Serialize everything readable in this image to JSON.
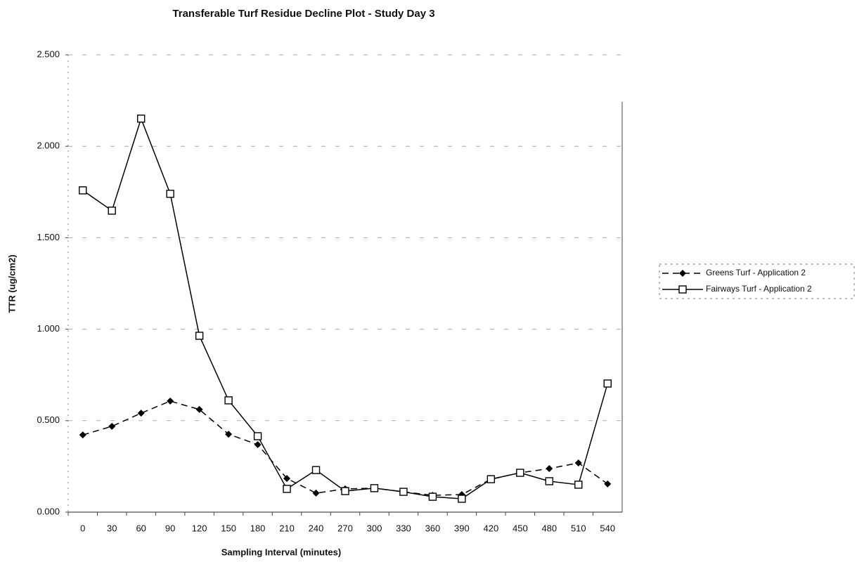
{
  "chart_data": {
    "type": "line",
    "title": "Transferable Turf Residue Decline Plot - Study Day 3",
    "x_label": "Sampling Interval (minutes)",
    "y_label": "TTR (ug/cm2)",
    "categories": [
      "0",
      "30",
      "60",
      "90",
      "120",
      "150",
      "180",
      "210",
      "240",
      "270",
      "300",
      "330",
      "360",
      "390",
      "420",
      "450",
      "480",
      "510",
      "540"
    ],
    "series": [
      {
        "name": "Greens Turf - Application 2",
        "color": "#000000",
        "line_style": "dashed",
        "marker": "diamond",
        "values": [
          0.422,
          0.469,
          0.541,
          0.607,
          0.561,
          0.426,
          0.369,
          0.184,
          0.104,
          0.127,
          0.131,
          0.111,
          0.092,
          0.096,
          0.18,
          0.215,
          0.238,
          0.269,
          0.154
        ]
      },
      {
        "name": "Fairways Turf - Application 2",
        "color": "#000000",
        "line_style": "solid",
        "marker": "square",
        "values": [
          1.759,
          1.648,
          2.151,
          1.74,
          0.964,
          0.611,
          0.415,
          0.127,
          0.23,
          0.115,
          0.131,
          0.111,
          0.084,
          0.073,
          0.18,
          0.215,
          0.169,
          0.15,
          0.703
        ]
      }
    ],
    "ylim": [
      0,
      2.5
    ],
    "yticks": [
      {
        "value": 0,
        "label": "0.000"
      },
      {
        "value": 0.5,
        "label": "0.500"
      },
      {
        "value": 1,
        "label": "1.000"
      },
      {
        "value": 1.5,
        "label": "1.500"
      },
      {
        "value": 2,
        "label": "2.000"
      },
      {
        "value": 2.5,
        "label": "2.500"
      }
    ],
    "grid": true,
    "legend": "right"
  }
}
